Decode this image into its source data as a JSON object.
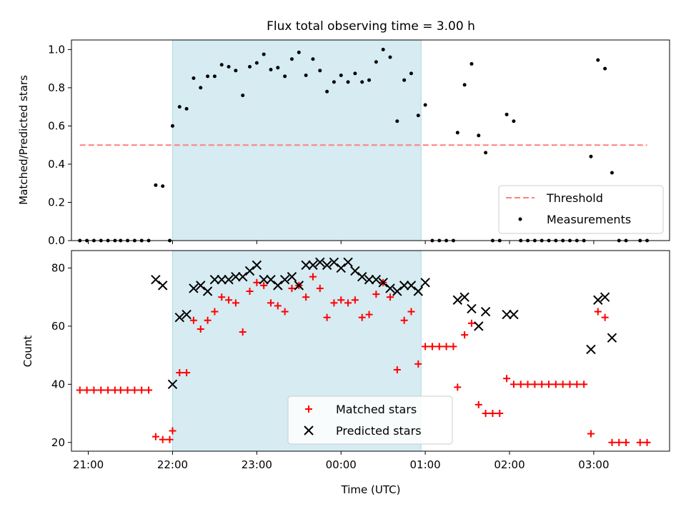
{
  "title": "Flux total observing time = 3.00 h",
  "chart_data": [
    {
      "type": "scatter",
      "ylabel": "Matched/Predicted stars",
      "xlim": [
        "20:48",
        "03:54"
      ],
      "ylim": [
        0,
        1.05
      ],
      "xticks": [
        "21:00",
        "22:00",
        "23:00",
        "00:00",
        "01:00",
        "02:00",
        "03:00"
      ],
      "yticks": [
        "0.0",
        "0.2",
        "0.4",
        "0.6",
        "0.8",
        "1.0"
      ],
      "shaded_span": [
        "22:00",
        "00:57"
      ],
      "threshold": 0.5,
      "legend": {
        "position": "bottom-right",
        "threshold_label": "Threshold",
        "measurements_label": "Measurements"
      },
      "series": [
        {
          "name": "Measurements",
          "points": [
            [
              "20:54",
              0
            ],
            [
              "20:59",
              0
            ],
            [
              "21:04",
              0
            ],
            [
              "21:09",
              0
            ],
            [
              "21:14",
              0
            ],
            [
              "21:19",
              0
            ],
            [
              "21:23",
              0
            ],
            [
              "21:28",
              0
            ],
            [
              "21:33",
              0
            ],
            [
              "21:38",
              0
            ],
            [
              "21:43",
              0
            ],
            [
              "21:48",
              0.29
            ],
            [
              "21:53",
              0.285
            ],
            [
              "21:58",
              0
            ],
            [
              "22:00",
              0.6
            ],
            [
              "22:05",
              0.7
            ],
            [
              "22:10",
              0.69
            ],
            [
              "22:15",
              0.85
            ],
            [
              "22:20",
              0.8
            ],
            [
              "22:25",
              0.86
            ],
            [
              "22:30",
              0.86
            ],
            [
              "22:35",
              0.92
            ],
            [
              "22:40",
              0.91
            ],
            [
              "22:45",
              0.89
            ],
            [
              "22:50",
              0.76
            ],
            [
              "22:55",
              0.91
            ],
            [
              "23:00",
              0.93
            ],
            [
              "23:05",
              0.975
            ],
            [
              "23:10",
              0.895
            ],
            [
              "23:15",
              0.905
            ],
            [
              "23:20",
              0.86
            ],
            [
              "23:25",
              0.95
            ],
            [
              "23:30",
              0.985
            ],
            [
              "23:35",
              0.865
            ],
            [
              "23:40",
              0.95
            ],
            [
              "23:45",
              0.89
            ],
            [
              "23:50",
              0.78
            ],
            [
              "23:55",
              0.83
            ],
            [
              "24:00",
              0.865
            ],
            [
              "24:05",
              0.83
            ],
            [
              "24:10",
              0.875
            ],
            [
              "24:15",
              0.83
            ],
            [
              "24:20",
              0.84
            ],
            [
              "24:25",
              0.935
            ],
            [
              "24:30",
              1.0
            ],
            [
              "24:35",
              0.96
            ],
            [
              "24:40",
              0.625
            ],
            [
              "24:45",
              0.84
            ],
            [
              "24:50",
              0.875
            ],
            [
              "24:55",
              0.655
            ],
            [
              "25:00",
              0.71
            ],
            [
              "25:05",
              0
            ],
            [
              "25:10",
              0
            ],
            [
              "25:15",
              0
            ],
            [
              "25:20",
              0
            ],
            [
              "25:23",
              0.565
            ],
            [
              "25:28",
              0.815
            ],
            [
              "25:33",
              0.925
            ],
            [
              "25:38",
              0.55
            ],
            [
              "25:43",
              0.46
            ],
            [
              "25:48",
              0
            ],
            [
              "25:53",
              0
            ],
            [
              "25:58",
              0.66
            ],
            [
              "26:03",
              0.625
            ],
            [
              "26:08",
              0
            ],
            [
              "26:13",
              0
            ],
            [
              "26:18",
              0
            ],
            [
              "26:23",
              0
            ],
            [
              "26:28",
              0
            ],
            [
              "26:33",
              0
            ],
            [
              "26:38",
              0
            ],
            [
              "26:43",
              0
            ],
            [
              "26:48",
              0
            ],
            [
              "26:53",
              0
            ],
            [
              "26:58",
              0.44
            ],
            [
              "27:03",
              0.945
            ],
            [
              "27:08",
              0.9
            ],
            [
              "27:13",
              0.355
            ],
            [
              "27:18",
              0
            ],
            [
              "27:23",
              0
            ],
            [
              "27:33",
              0
            ],
            [
              "27:38",
              0
            ]
          ]
        }
      ]
    },
    {
      "type": "scatter",
      "xlabel": "Time (UTC)",
      "ylabel": "Count",
      "xlim": [
        "20:48",
        "03:54"
      ],
      "ylim": [
        17,
        86
      ],
      "xticks": [
        "21:00",
        "22:00",
        "23:00",
        "00:00",
        "01:00",
        "02:00",
        "03:00"
      ],
      "yticks": [
        "20",
        "40",
        "60",
        "80"
      ],
      "shaded_span": [
        "22:00",
        "00:57"
      ],
      "legend": {
        "position": "bottom-center",
        "matched_label": "Matched stars",
        "predicted_label": "Predicted stars"
      },
      "series": [
        {
          "name": "Matched stars",
          "points": [
            [
              "20:54",
              38
            ],
            [
              "20:59",
              38
            ],
            [
              "21:04",
              38
            ],
            [
              "21:09",
              38
            ],
            [
              "21:14",
              38
            ],
            [
              "21:19",
              38
            ],
            [
              "21:23",
              38
            ],
            [
              "21:28",
              38
            ],
            [
              "21:33",
              38
            ],
            [
              "21:38",
              38
            ],
            [
              "21:43",
              38
            ],
            [
              "21:48",
              22
            ],
            [
              "21:53",
              21
            ],
            [
              "21:58",
              21
            ],
            [
              "22:00",
              24
            ],
            [
              "22:05",
              44
            ],
            [
              "22:10",
              44
            ],
            [
              "22:15",
              62
            ],
            [
              "22:20",
              59
            ],
            [
              "22:25",
              62
            ],
            [
              "22:30",
              65
            ],
            [
              "22:35",
              70
            ],
            [
              "22:40",
              69
            ],
            [
              "22:45",
              68
            ],
            [
              "22:50",
              58
            ],
            [
              "22:55",
              72
            ],
            [
              "23:00",
              75
            ],
            [
              "23:05",
              74
            ],
            [
              "23:10",
              68
            ],
            [
              "23:15",
              67
            ],
            [
              "23:20",
              65
            ],
            [
              "23:25",
              73
            ],
            [
              "23:30",
              74
            ],
            [
              "23:35",
              70
            ],
            [
              "23:40",
              77
            ],
            [
              "23:45",
              73
            ],
            [
              "23:50",
              63
            ],
            [
              "23:55",
              68
            ],
            [
              "24:00",
              69
            ],
            [
              "24:05",
              68
            ],
            [
              "24:10",
              69
            ],
            [
              "24:15",
              63
            ],
            [
              "24:20",
              64
            ],
            [
              "24:25",
              71
            ],
            [
              "24:30",
              75
            ],
            [
              "24:35",
              70
            ],
            [
              "24:40",
              45
            ],
            [
              "24:45",
              62
            ],
            [
              "24:50",
              65
            ],
            [
              "24:55",
              47
            ],
            [
              "25:00",
              53
            ],
            [
              "25:05",
              53
            ],
            [
              "25:10",
              53
            ],
            [
              "25:15",
              53
            ],
            [
              "25:20",
              53
            ],
            [
              "25:23",
              39
            ],
            [
              "25:28",
              57
            ],
            [
              "25:33",
              61
            ],
            [
              "25:38",
              33
            ],
            [
              "25:43",
              30
            ],
            [
              "25:48",
              30
            ],
            [
              "25:53",
              30
            ],
            [
              "25:58",
              42
            ],
            [
              "26:03",
              40
            ],
            [
              "26:08",
              40
            ],
            [
              "26:13",
              40
            ],
            [
              "26:18",
              40
            ],
            [
              "26:23",
              40
            ],
            [
              "26:28",
              40
            ],
            [
              "26:33",
              40
            ],
            [
              "26:38",
              40
            ],
            [
              "26:43",
              40
            ],
            [
              "26:48",
              40
            ],
            [
              "26:53",
              40
            ],
            [
              "26:58",
              23
            ],
            [
              "27:03",
              65
            ],
            [
              "27:08",
              63
            ],
            [
              "27:13",
              20
            ],
            [
              "27:18",
              20
            ],
            [
              "27:23",
              20
            ],
            [
              "27:33",
              20
            ],
            [
              "27:38",
              20
            ]
          ]
        },
        {
          "name": "Predicted stars",
          "points": [
            [
              "21:48",
              76
            ],
            [
              "21:53",
              74
            ],
            [
              "22:00",
              40
            ],
            [
              "22:05",
              63
            ],
            [
              "22:10",
              64
            ],
            [
              "22:15",
              73
            ],
            [
              "22:20",
              74
            ],
            [
              "22:25",
              72
            ],
            [
              "22:30",
              76
            ],
            [
              "22:35",
              76
            ],
            [
              "22:40",
              76
            ],
            [
              "22:45",
              77
            ],
            [
              "22:50",
              77
            ],
            [
              "22:55",
              79
            ],
            [
              "23:00",
              81
            ],
            [
              "23:05",
              76
            ],
            [
              "23:10",
              76
            ],
            [
              "23:15",
              74
            ],
            [
              "23:20",
              76
            ],
            [
              "23:25",
              77
            ],
            [
              "23:30",
              74
            ],
            [
              "23:35",
              81
            ],
            [
              "23:40",
              81
            ],
            [
              "23:45",
              82
            ],
            [
              "23:50",
              81
            ],
            [
              "23:55",
              82
            ],
            [
              "24:00",
              80
            ],
            [
              "24:05",
              82
            ],
            [
              "24:10",
              79
            ],
            [
              "24:15",
              77
            ],
            [
              "24:20",
              76
            ],
            [
              "24:25",
              76
            ],
            [
              "24:30",
              75
            ],
            [
              "24:35",
              73
            ],
            [
              "24:40",
              72
            ],
            [
              "24:45",
              74
            ],
            [
              "24:50",
              74
            ],
            [
              "24:55",
              72
            ],
            [
              "25:00",
              75
            ],
            [
              "25:23",
              69
            ],
            [
              "25:28",
              70
            ],
            [
              "25:33",
              66
            ],
            [
              "25:38",
              60
            ],
            [
              "25:43",
              65
            ],
            [
              "25:58",
              64
            ],
            [
              "26:03",
              64
            ],
            [
              "26:58",
              52
            ],
            [
              "27:03",
              69
            ],
            [
              "27:08",
              70
            ],
            [
              "27:13",
              56
            ]
          ]
        }
      ]
    }
  ],
  "colors": {
    "shade": "#add8e6",
    "threshold": "#ff7f7f",
    "measurements": "#000000",
    "matched": "#ff0000",
    "predicted": "#000000"
  }
}
